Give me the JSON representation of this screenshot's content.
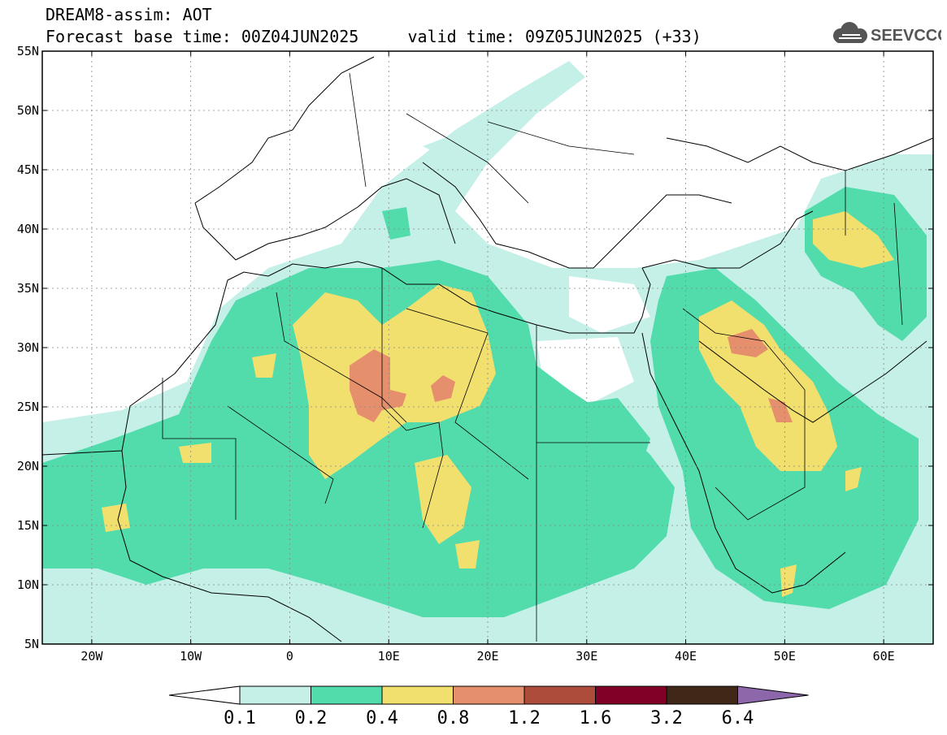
{
  "header": {
    "line1": "DREAM8-assim: AOT",
    "line2": "Forecast base time: 00Z04JUN2025     valid time: 09Z05JUN2025 (+33)"
  },
  "logo": {
    "text": "SEEVCCC",
    "icon": "cloud-icon"
  },
  "map": {
    "lon_range": [
      -25,
      65
    ],
    "lat_range": [
      5,
      55
    ],
    "lat_labels": [
      "55N",
      "50N",
      "45N",
      "40N",
      "35N",
      "30N",
      "25N",
      "20N",
      "15N",
      "10N",
      "5N"
    ],
    "lon_labels": [
      "20W",
      "10W",
      "0",
      "10E",
      "20E",
      "30E",
      "40E",
      "50E",
      "60E"
    ],
    "grid": true
  },
  "colorbar": {
    "labels": [
      "0.1",
      "0.2",
      "0.4",
      "0.8",
      "1.2",
      "1.6",
      "3.2",
      "6.4"
    ],
    "colors": [
      "#ffffff",
      "#c4f0e8",
      "#52dcac",
      "#f2e06e",
      "#e58f6c",
      "#ae4c3c",
      "#800028",
      "#402818",
      "#8c68aa"
    ]
  }
}
